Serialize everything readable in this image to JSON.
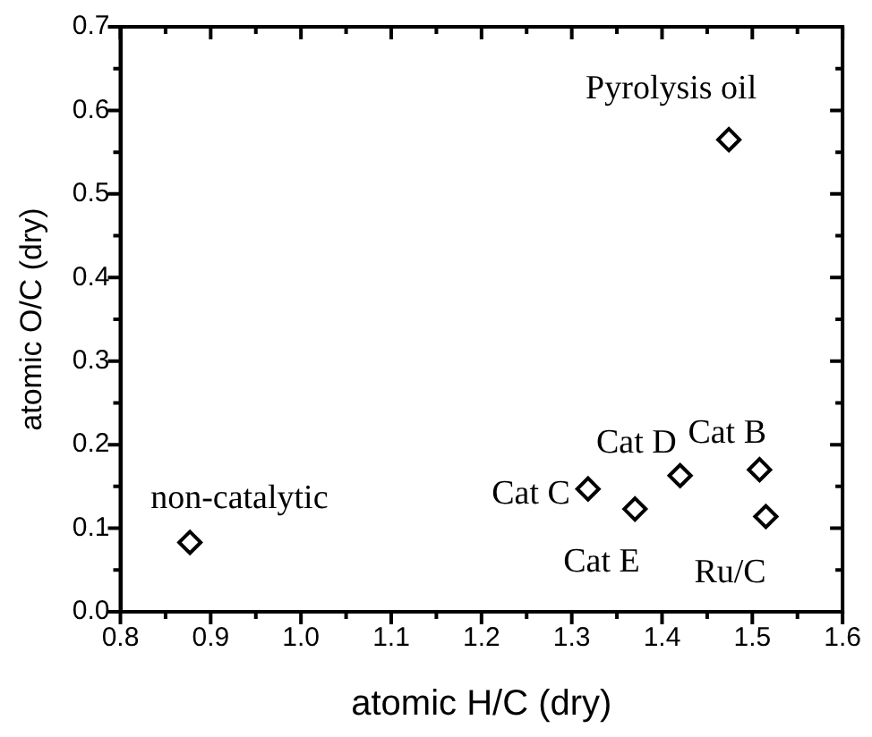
{
  "chart_data": {
    "type": "scatter",
    "xlabel": "atomic H/C (dry)",
    "ylabel": "atomic O/C (dry)",
    "x": [
      0.877,
      1.318,
      1.37,
      1.42,
      1.508,
      1.515,
      1.474
    ],
    "values": [
      0.083,
      0.147,
      0.123,
      0.163,
      0.17,
      0.114,
      0.565
    ],
    "color": "#000000",
    "marker": "diamond",
    "grid": false,
    "legend": false,
    "xlim": [
      0.8,
      1.6
    ],
    "xticks": [
      {
        "value": 0.8,
        "label": "0.8"
      },
      {
        "value": 0.9,
        "label": "0.9"
      },
      {
        "value": 1.0,
        "label": "1.0"
      },
      {
        "value": 1.1,
        "label": "1.1"
      },
      {
        "value": 1.2,
        "label": "1.2"
      },
      {
        "value": 1.3,
        "label": "1.3"
      },
      {
        "value": 1.4,
        "label": "1.4"
      },
      {
        "value": 1.5,
        "label": "1.5"
      },
      {
        "value": 1.6,
        "label": "1.6"
      }
    ],
    "ylim": [
      0,
      0.7
    ],
    "yticks": [
      {
        "value": 0,
        "label": "0.0"
      },
      {
        "value": 0.1,
        "label": "0.1"
      },
      {
        "value": 0.2,
        "label": "0.2"
      },
      {
        "value": 0.3,
        "label": "0.3"
      },
      {
        "value": 0.4,
        "label": "0.4"
      },
      {
        "value": 0.5,
        "label": "0.5"
      },
      {
        "value": 0.6,
        "label": "0.6"
      },
      {
        "value": 0.7,
        "label": "0.7"
      }
    ],
    "annotations": [
      {
        "text": "non-catalytic",
        "x": 0.877,
        "y": 0.083
      },
      {
        "text": "Cat C",
        "x": 1.318,
        "y": 0.147
      },
      {
        "text": "Cat E",
        "x": 1.37,
        "y": 0.123
      },
      {
        "text": "Cat D",
        "x": 1.42,
        "y": 0.163
      },
      {
        "text": "Cat B",
        "x": 1.508,
        "y": 0.17
      },
      {
        "text": "Ru/C",
        "x": 1.515,
        "y": 0.114
      },
      {
        "text": "Pyrolysis oil",
        "x": 1.474,
        "y": 0.565
      }
    ]
  }
}
